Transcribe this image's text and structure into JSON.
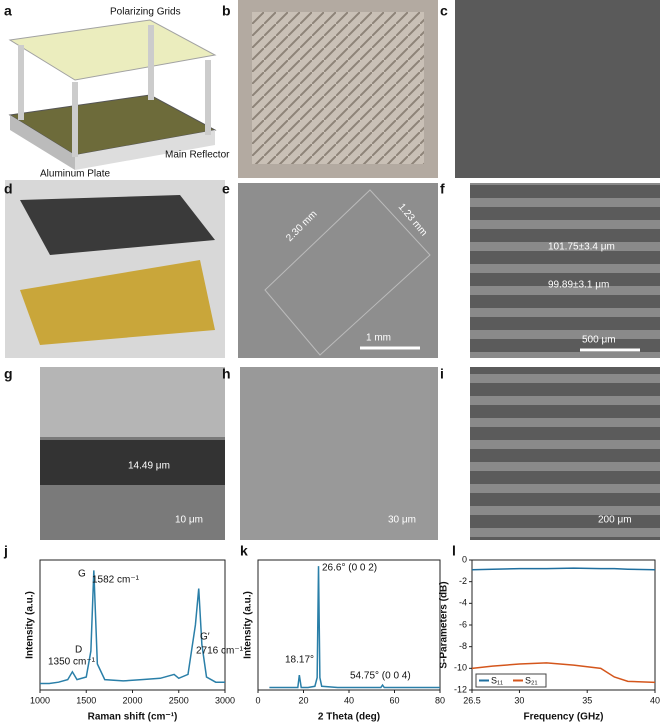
{
  "panel_labels": [
    "a",
    "b",
    "c",
    "d",
    "e",
    "f",
    "g",
    "h",
    "i",
    "j",
    "k",
    "l"
  ],
  "figure_texts": {
    "polarizing_grids": "Polarizing Grids",
    "main_reflector": "Main Reflector",
    "aluminum_plate": "Aluminum Plate",
    "dim_long": "2.30 mm",
    "dim_short": "1.23 mm",
    "scale_e": "1 mm",
    "pitch_1": "101.75±3.4 μm",
    "pitch_2": "99.89±3.1 μm",
    "scale_f": "500 μm",
    "thickness": "14.49 μm",
    "scale_g": "10 μm",
    "scale_h": "30 μm",
    "scale_i": "200 μm"
  },
  "chart_data": [
    {
      "type": "line",
      "xlabel": "Raman shift (cm⁻¹)",
      "ylabel": "Intensity (a.u.)",
      "x": [
        1000,
        1100,
        1200,
        1300,
        1350,
        1400,
        1500,
        1550,
        1582,
        1620,
        1700,
        1900,
        2100,
        2300,
        2450,
        2500,
        2600,
        2680,
        2716,
        2750,
        2800,
        2900,
        3000
      ],
      "series": [
        {
          "name": "Raman",
          "color": "#2a7fa8",
          "values": [
            5,
            5,
            6,
            8,
            14,
            8,
            10,
            30,
            92,
            20,
            8,
            7,
            8,
            9,
            12,
            9,
            12,
            50,
            78,
            35,
            10,
            6,
            6
          ]
        }
      ],
      "xlim": [
        1000,
        3000
      ],
      "xticks": [
        1000,
        1500,
        2000,
        2500,
        3000
      ],
      "ylim": [
        0,
        100
      ],
      "annotations": [
        "G",
        "1582 cm⁻¹",
        "D",
        "1350 cm⁻¹",
        "G′",
        "2716 cm⁻¹"
      ]
    },
    {
      "type": "line",
      "xlabel": "2 Theta (deg)",
      "ylabel": "Intensity (a.u.)",
      "x": [
        5,
        10,
        15,
        17.5,
        18.17,
        19,
        22,
        25,
        26,
        26.6,
        27.2,
        28,
        35,
        45,
        54,
        54.75,
        55.5,
        60,
        70,
        80
      ],
      "series": [
        {
          "name": "XRD",
          "color": "#2a7fa8",
          "values": [
            2,
            2,
            2,
            2,
            12,
            2,
            2,
            3,
            10,
            100,
            10,
            3,
            2,
            2,
            2,
            4,
            2,
            2,
            2,
            2
          ]
        }
      ],
      "xlim": [
        0,
        80
      ],
      "xticks": [
        0,
        20,
        40,
        60,
        80
      ],
      "ylim": [
        0,
        105
      ],
      "annotations": [
        "26.6° (0 0 2)",
        "18.17°",
        "54.75° (0 0 4)"
      ]
    },
    {
      "type": "line",
      "xlabel": "Frequency (GHz)",
      "ylabel": "S-Parameters (dB)",
      "x": [
        26.5,
        28,
        30,
        32,
        34,
        36,
        37,
        38,
        40
      ],
      "series": [
        {
          "name": "S₁₁",
          "color": "#1f6f9f",
          "values": [
            -0.9,
            -0.85,
            -0.8,
            -0.8,
            -0.75,
            -0.8,
            -0.8,
            -0.85,
            -0.9
          ]
        },
        {
          "name": "S₂₁",
          "color": "#d4561c",
          "values": [
            -10,
            -9.8,
            -9.6,
            -9.5,
            -9.7,
            -10,
            -10.8,
            -11.2,
            -11.3
          ]
        }
      ],
      "xlim": [
        26.5,
        40
      ],
      "xticks": [
        26.5,
        30,
        35,
        40
      ],
      "ylim": [
        -12,
        0
      ],
      "yticks": [
        0,
        -2,
        -4,
        -6,
        -8,
        -10,
        -12
      ],
      "legend": "lower left",
      "annotations": []
    }
  ]
}
